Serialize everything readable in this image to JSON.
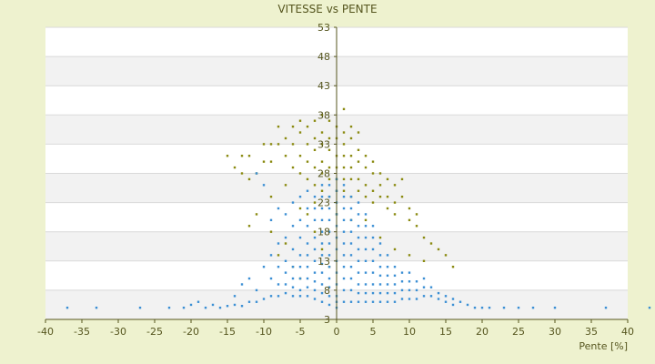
{
  "chart_data": {
    "type": "scatter",
    "title": "VITESSE vs PENTE",
    "xlabel": "Pente [%]",
    "ylabel": "",
    "xlim": [
      -40,
      40
    ],
    "ylim": [
      3,
      53
    ],
    "x_ticks": [
      "-40",
      "-35",
      "-30",
      "-25",
      "-20",
      "-15",
      "-10",
      "-5",
      "0",
      "5",
      "10",
      "15",
      "20",
      "25",
      "30",
      "35",
      "40"
    ],
    "y_ticks": [
      "3",
      "8",
      "13",
      "18",
      "23",
      "28",
      "33",
      "38",
      "43",
      "48",
      "53"
    ],
    "background": "#eef2cf",
    "plot_bands": [
      "#ffffff",
      "#f2f2f2"
    ],
    "series": [
      {
        "color": "#8a8a10",
        "points": [
          [
            -15,
            31
          ],
          [
            -14,
            29
          ],
          [
            -13,
            31
          ],
          [
            -13,
            28
          ],
          [
            -12,
            27
          ],
          [
            -12,
            31
          ],
          [
            -11,
            28
          ],
          [
            -10,
            30
          ],
          [
            -10,
            33
          ],
          [
            -9,
            33
          ],
          [
            -9,
            30
          ],
          [
            -8,
            33
          ],
          [
            -8,
            36
          ],
          [
            -7,
            34
          ],
          [
            -7,
            31
          ],
          [
            -6,
            36
          ],
          [
            -6,
            33
          ],
          [
            -6,
            29
          ],
          [
            -5,
            35
          ],
          [
            -5,
            37
          ],
          [
            -5,
            31
          ],
          [
            -5,
            28
          ],
          [
            -4,
            36
          ],
          [
            -4,
            33
          ],
          [
            -4,
            30
          ],
          [
            -4,
            27
          ],
          [
            -3,
            37
          ],
          [
            -3,
            34
          ],
          [
            -3,
            32
          ],
          [
            -3,
            29
          ],
          [
            -3,
            26
          ],
          [
            -2,
            38
          ],
          [
            -2,
            35
          ],
          [
            -2,
            33
          ],
          [
            -2,
            30
          ],
          [
            -2,
            28
          ],
          [
            -2,
            25
          ],
          [
            -1,
            37
          ],
          [
            -1,
            34
          ],
          [
            -1,
            32
          ],
          [
            -1,
            29
          ],
          [
            -1,
            27
          ],
          [
            -1,
            24
          ],
          [
            0,
            36
          ],
          [
            0,
            34
          ],
          [
            0,
            31
          ],
          [
            0,
            29
          ],
          [
            0,
            27
          ],
          [
            0,
            25
          ],
          [
            1,
            35
          ],
          [
            1,
            33
          ],
          [
            1,
            31
          ],
          [
            1,
            29
          ],
          [
            1,
            27
          ],
          [
            1,
            25
          ],
          [
            2,
            36
          ],
          [
            2,
            34
          ],
          [
            2,
            31
          ],
          [
            2,
            29
          ],
          [
            2,
            27
          ],
          [
            2,
            24
          ],
          [
            3,
            35
          ],
          [
            3,
            32
          ],
          [
            3,
            30
          ],
          [
            3,
            27
          ],
          [
            3,
            25
          ],
          [
            4,
            31
          ],
          [
            4,
            29
          ],
          [
            4,
            26
          ],
          [
            4,
            24
          ],
          [
            5,
            30
          ],
          [
            5,
            28
          ],
          [
            5,
            25
          ],
          [
            5,
            23
          ],
          [
            6,
            28
          ],
          [
            6,
            26
          ],
          [
            6,
            24
          ],
          [
            7,
            27
          ],
          [
            7,
            24
          ],
          [
            7,
            22
          ],
          [
            8,
            26
          ],
          [
            8,
            23
          ],
          [
            8,
            21
          ],
          [
            9,
            27
          ],
          [
            9,
            24
          ],
          [
            10,
            22
          ],
          [
            10,
            20
          ],
          [
            11,
            21
          ],
          [
            11,
            19
          ],
          [
            12,
            17
          ],
          [
            13,
            16
          ],
          [
            14,
            15
          ],
          [
            15,
            14
          ],
          [
            16,
            12
          ],
          [
            -12,
            19
          ],
          [
            -11,
            21
          ],
          [
            -9,
            18
          ],
          [
            -8,
            14
          ],
          [
            -7,
            16
          ],
          [
            -6,
            12
          ],
          [
            -5,
            10
          ],
          [
            -4,
            21
          ],
          [
            -3,
            18
          ],
          [
            -2,
            15
          ],
          [
            -1,
            12
          ],
          [
            -9,
            24
          ],
          [
            -7,
            26
          ],
          [
            -5,
            22
          ],
          [
            -3,
            23
          ],
          [
            0,
            21
          ],
          [
            2,
            20
          ],
          [
            4,
            20
          ],
          [
            6,
            17
          ],
          [
            8,
            15
          ],
          [
            10,
            14
          ],
          [
            12,
            13
          ],
          [
            1,
            39
          ]
        ]
      },
      {
        "color": "#3b8fd4",
        "points": [
          [
            -37,
            5
          ],
          [
            -33,
            5
          ],
          [
            -27,
            5
          ],
          [
            -23,
            5
          ],
          [
            -21,
            5
          ],
          [
            -20,
            5.5
          ],
          [
            -19,
            6
          ],
          [
            -18,
            5
          ],
          [
            -17,
            5.5
          ],
          [
            -16,
            5
          ],
          [
            -15,
            5.3
          ],
          [
            -14,
            5.5
          ],
          [
            -14,
            7
          ],
          [
            -13,
            5.3
          ],
          [
            -13,
            9
          ],
          [
            -12,
            6
          ],
          [
            -12,
            10
          ],
          [
            -11,
            6
          ],
          [
            -11,
            8
          ],
          [
            -11,
            28
          ],
          [
            -10,
            6.5
          ],
          [
            -10,
            12
          ],
          [
            -10,
            26
          ],
          [
            -9,
            7
          ],
          [
            -9,
            10
          ],
          [
            -9,
            14
          ],
          [
            -9,
            20
          ],
          [
            -8,
            7
          ],
          [
            -8,
            9
          ],
          [
            -8,
            12
          ],
          [
            -8,
            16
          ],
          [
            -8,
            22
          ],
          [
            -7,
            7.5
          ],
          [
            -7,
            9
          ],
          [
            -7,
            11
          ],
          [
            -7,
            13
          ],
          [
            -7,
            17
          ],
          [
            -7,
            21
          ],
          [
            -6,
            7
          ],
          [
            -6,
            8.5
          ],
          [
            -6,
            10
          ],
          [
            -6,
            12
          ],
          [
            -6,
            15
          ],
          [
            -6,
            19
          ],
          [
            -6,
            23
          ],
          [
            -5,
            7
          ],
          [
            -5,
            8
          ],
          [
            -5,
            10
          ],
          [
            -5,
            12
          ],
          [
            -5,
            14
          ],
          [
            -5,
            17
          ],
          [
            -5,
            20
          ],
          [
            -5,
            24
          ],
          [
            -4,
            7
          ],
          [
            -4,
            8.5
          ],
          [
            -4,
            10
          ],
          [
            -4,
            12
          ],
          [
            -4,
            14
          ],
          [
            -4,
            16
          ],
          [
            -4,
            19
          ],
          [
            -4,
            22
          ],
          [
            -4,
            25
          ],
          [
            -3,
            6.5
          ],
          [
            -3,
            8
          ],
          [
            -3,
            9.5
          ],
          [
            -3,
            11
          ],
          [
            -3,
            13
          ],
          [
            -3,
            15
          ],
          [
            -3,
            17
          ],
          [
            -3,
            20
          ],
          [
            -3,
            22
          ],
          [
            -3,
            24
          ],
          [
            -2,
            6
          ],
          [
            -2,
            7.5
          ],
          [
            -2,
            9
          ],
          [
            -2,
            11
          ],
          [
            -2,
            12.5
          ],
          [
            -2,
            14
          ],
          [
            -2,
            16
          ],
          [
            -2,
            18
          ],
          [
            -2,
            20
          ],
          [
            -2,
            22
          ],
          [
            -2,
            24
          ],
          [
            -2,
            26
          ],
          [
            -1,
            5.5
          ],
          [
            -1,
            7
          ],
          [
            -1,
            8.5
          ],
          [
            -1,
            10
          ],
          [
            -1,
            12
          ],
          [
            -1,
            14
          ],
          [
            -1,
            16
          ],
          [
            -1,
            18
          ],
          [
            -1,
            20
          ],
          [
            -1,
            22
          ],
          [
            -1,
            24
          ],
          [
            -1,
            26
          ],
          [
            0,
            5
          ],
          [
            0,
            6
          ],
          [
            0,
            7
          ],
          [
            0,
            9
          ],
          [
            0,
            11
          ],
          [
            0,
            13
          ],
          [
            0,
            15
          ],
          [
            0,
            17
          ],
          [
            0,
            19
          ],
          [
            0,
            21
          ],
          [
            0,
            23
          ],
          [
            0,
            25
          ],
          [
            0,
            27
          ],
          [
            1,
            6
          ],
          [
            1,
            8
          ],
          [
            1,
            10
          ],
          [
            1,
            12
          ],
          [
            1,
            14
          ],
          [
            1,
            16
          ],
          [
            1,
            18
          ],
          [
            1,
            20
          ],
          [
            1,
            22
          ],
          [
            1,
            24
          ],
          [
            1,
            26
          ],
          [
            2,
            6
          ],
          [
            2,
            8
          ],
          [
            2,
            10
          ],
          [
            2,
            12
          ],
          [
            2,
            14
          ],
          [
            2,
            16
          ],
          [
            2,
            18
          ],
          [
            2,
            20
          ],
          [
            2,
            22
          ],
          [
            2,
            24
          ],
          [
            3,
            6
          ],
          [
            3,
            7.5
          ],
          [
            3,
            9
          ],
          [
            3,
            11
          ],
          [
            3,
            13
          ],
          [
            3,
            15
          ],
          [
            3,
            17
          ],
          [
            3,
            19
          ],
          [
            3,
            21
          ],
          [
            3,
            23
          ],
          [
            4,
            6
          ],
          [
            4,
            7.5
          ],
          [
            4,
            9
          ],
          [
            4,
            11
          ],
          [
            4,
            13
          ],
          [
            4,
            15
          ],
          [
            4,
            17
          ],
          [
            4,
            19
          ],
          [
            4,
            21
          ],
          [
            5,
            6
          ],
          [
            5,
            7.5
          ],
          [
            5,
            9
          ],
          [
            5,
            11
          ],
          [
            5,
            13
          ],
          [
            5,
            15
          ],
          [
            5,
            17
          ],
          [
            5,
            19
          ],
          [
            6,
            6
          ],
          [
            6,
            7.5
          ],
          [
            6,
            9
          ],
          [
            6,
            10.5
          ],
          [
            6,
            12
          ],
          [
            6,
            14
          ],
          [
            6,
            16
          ],
          [
            7,
            6
          ],
          [
            7,
            7.5
          ],
          [
            7,
            9
          ],
          [
            7,
            10.5
          ],
          [
            7,
            12
          ],
          [
            7,
            14
          ],
          [
            8,
            6
          ],
          [
            8,
            7.5
          ],
          [
            8,
            9
          ],
          [
            8,
            10.5
          ],
          [
            8,
            12
          ],
          [
            9,
            6.5
          ],
          [
            9,
            8
          ],
          [
            9,
            9.5
          ],
          [
            9,
            11
          ],
          [
            10,
            6.5
          ],
          [
            10,
            8
          ],
          [
            10,
            9.5
          ],
          [
            10,
            11
          ],
          [
            11,
            6.5
          ],
          [
            11,
            8
          ],
          [
            11,
            9.5
          ],
          [
            12,
            7
          ],
          [
            12,
            8.5
          ],
          [
            12,
            10
          ],
          [
            13,
            7
          ],
          [
            13,
            8.5
          ],
          [
            14,
            6.5
          ],
          [
            14,
            7.5
          ],
          [
            15,
            6
          ],
          [
            15,
            7
          ],
          [
            16,
            5.5
          ],
          [
            16,
            6.5
          ],
          [
            17,
            6
          ],
          [
            18,
            5.5
          ],
          [
            19,
            5
          ],
          [
            20,
            5
          ],
          [
            21,
            5
          ],
          [
            23,
            5
          ],
          [
            25,
            5
          ],
          [
            27,
            5
          ],
          [
            30,
            5
          ],
          [
            37,
            5
          ],
          [
            43,
            5
          ]
        ]
      }
    ]
  }
}
